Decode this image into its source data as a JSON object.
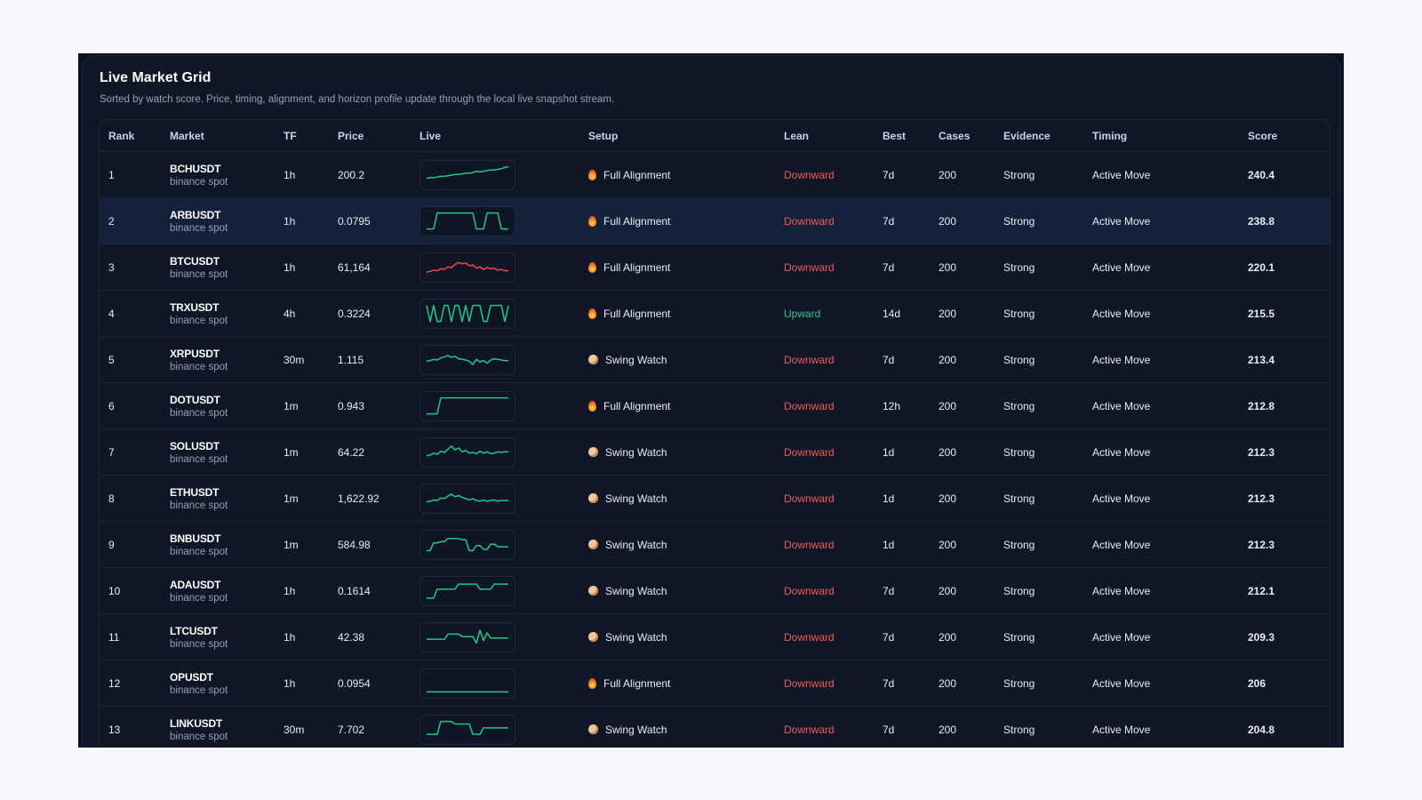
{
  "header": {
    "title": "Live Market Grid",
    "subtitle": "Sorted by watch score. Price, timing, alignment, and horizon profile update through the local live snapshot stream."
  },
  "columns": [
    "Rank",
    "Market",
    "TF",
    "Price",
    "Live",
    "Setup",
    "Lean",
    "Best",
    "Cases",
    "Evidence",
    "Timing",
    "Score"
  ],
  "colors": {
    "up": "#35c48c",
    "down": "#f05a5a",
    "spark_up": "#22c58a",
    "spark_down": "#f0454a"
  },
  "rows": [
    {
      "rank": "1",
      "symbol": "BCHUSDT",
      "venue": "binance spot",
      "tf": "1h",
      "price": "200.2",
      "setup_icon": "flame-icon",
      "setup": "Full Alignment",
      "lean": "Downward",
      "lean_dir": "down",
      "best": "7d",
      "cases": "200",
      "evidence": "Strong",
      "timing": "Active Move",
      "score": "240.4",
      "spark": [
        12,
        13,
        13,
        14,
        15,
        15,
        16,
        17,
        18,
        18,
        19,
        20,
        20,
        21,
        23,
        22,
        23,
        24,
        25,
        25,
        26,
        27,
        29,
        30
      ],
      "spark_color": "up"
    },
    {
      "rank": "2",
      "symbol": "ARBUSDT",
      "venue": "binance spot",
      "tf": "1h",
      "price": "0.0795",
      "setup_icon": "flame-icon",
      "setup": "Full Alignment",
      "lean": "Downward",
      "lean_dir": "down",
      "best": "7d",
      "cases": "200",
      "evidence": "Strong",
      "timing": "Active Move",
      "score": "238.8",
      "spark": [
        5,
        5,
        5,
        30,
        30,
        30,
        30,
        30,
        30,
        30,
        30,
        30,
        30,
        30,
        5,
        5,
        5,
        30,
        30,
        30,
        30,
        5,
        5,
        5
      ],
      "spark_color": "up"
    },
    {
      "rank": "3",
      "symbol": "BTCUSDT",
      "venue": "binance spot",
      "tf": "1h",
      "price": "61,164",
      "setup_icon": "flame-icon",
      "setup": "Full Alignment",
      "lean": "Downward",
      "lean_dir": "down",
      "best": "7d",
      "cases": "200",
      "evidence": "Strong",
      "timing": "Active Move",
      "score": "220.1",
      "spark": [
        10,
        11,
        13,
        12,
        15,
        14,
        18,
        17,
        22,
        25,
        23,
        24,
        20,
        21,
        16,
        18,
        14,
        17,
        15,
        16,
        13,
        14,
        12,
        12
      ],
      "spark_color": "down"
    },
    {
      "rank": "4",
      "symbol": "TRXUSDT",
      "venue": "binance spot",
      "tf": "4h",
      "price": "0.3224",
      "setup_icon": "flame-icon",
      "setup": "Full Alignment",
      "lean": "Upward",
      "lean_dir": "up",
      "best": "14d",
      "cases": "200",
      "evidence": "Strong",
      "timing": "Active Move",
      "score": "215.5",
      "spark": [
        30,
        5,
        30,
        5,
        5,
        30,
        30,
        5,
        30,
        30,
        5,
        30,
        5,
        30,
        30,
        30,
        5,
        5,
        30,
        30,
        30,
        30,
        5,
        30
      ],
      "spark_color": "up"
    },
    {
      "rank": "5",
      "symbol": "XRPUSDT",
      "venue": "binance spot",
      "tf": "30m",
      "price": "1.115",
      "setup_icon": "swing-icon",
      "setup": "Swing Watch",
      "lean": "Downward",
      "lean_dir": "down",
      "best": "7d",
      "cases": "200",
      "evidence": "Strong",
      "timing": "Active Move",
      "score": "213.4",
      "spark": [
        15,
        16,
        18,
        17,
        20,
        22,
        24,
        21,
        23,
        19,
        18,
        17,
        15,
        10,
        18,
        14,
        16,
        12,
        17,
        19,
        18,
        17,
        16,
        16
      ],
      "spark_color": "up"
    },
    {
      "rank": "6",
      "symbol": "DOTUSDT",
      "venue": "binance spot",
      "tf": "1m",
      "price": "0.943",
      "setup_icon": "flame-icon",
      "setup": "Full Alignment",
      "lean": "Downward",
      "lean_dir": "down",
      "best": "12h",
      "cases": "200",
      "evidence": "Strong",
      "timing": "Active Move",
      "score": "212.8",
      "spark": [
        5,
        5,
        5,
        5,
        30,
        30,
        30,
        30,
        30,
        30,
        30,
        30,
        30,
        30,
        30,
        30,
        30,
        30,
        30,
        30,
        30,
        30,
        30,
        30
      ],
      "spark_color": "up"
    },
    {
      "rank": "7",
      "symbol": "SOLUSDT",
      "venue": "binance spot",
      "tf": "1m",
      "price": "64.22",
      "setup_icon": "swing-icon",
      "setup": "Swing Watch",
      "lean": "Downward",
      "lean_dir": "down",
      "best": "1d",
      "cases": "200",
      "evidence": "Strong",
      "timing": "Active Move",
      "score": "212.3",
      "spark": [
        12,
        13,
        16,
        14,
        19,
        17,
        22,
        27,
        21,
        24,
        18,
        20,
        16,
        17,
        15,
        19,
        16,
        18,
        15,
        16,
        18,
        17,
        18,
        18
      ],
      "spark_color": "up"
    },
    {
      "rank": "8",
      "symbol": "ETHUSDT",
      "venue": "binance spot",
      "tf": "1m",
      "price": "1,622.92",
      "setup_icon": "swing-icon",
      "setup": "Swing Watch",
      "lean": "Downward",
      "lean_dir": "down",
      "best": "1d",
      "cases": "200",
      "evidence": "Strong",
      "timing": "Active Move",
      "score": "212.3",
      "spark": [
        12,
        13,
        15,
        14,
        18,
        17,
        21,
        24,
        20,
        22,
        19,
        17,
        15,
        17,
        14,
        13,
        15,
        13,
        14,
        15,
        13,
        14,
        14,
        14
      ],
      "spark_color": "up"
    },
    {
      "rank": "9",
      "symbol": "BNBUSDT",
      "venue": "binance spot",
      "tf": "1m",
      "price": "584.98",
      "setup_icon": "swing-icon",
      "setup": "Swing Watch",
      "lean": "Downward",
      "lean_dir": "down",
      "best": "1d",
      "cases": "200",
      "evidence": "Strong",
      "timing": "Active Move",
      "score": "212.3",
      "spark": [
        8,
        8,
        20,
        20,
        22,
        22,
        27,
        27,
        27,
        27,
        25,
        25,
        8,
        8,
        16,
        16,
        10,
        10,
        18,
        18,
        14,
        14,
        14,
        14
      ],
      "spark_color": "up"
    },
    {
      "rank": "10",
      "symbol": "ADAUSDT",
      "venue": "binance spot",
      "tf": "1h",
      "price": "0.1614",
      "setup_icon": "swing-icon",
      "setup": "Swing Watch",
      "lean": "Downward",
      "lean_dir": "down",
      "best": "7d",
      "cases": "200",
      "evidence": "Strong",
      "timing": "Active Move",
      "score": "212.1",
      "spark": [
        6,
        6,
        6,
        20,
        20,
        20,
        20,
        20,
        20,
        28,
        28,
        28,
        28,
        28,
        28,
        20,
        20,
        20,
        20,
        28,
        28,
        28,
        28,
        28
      ],
      "spark_color": "up"
    },
    {
      "rank": "11",
      "symbol": "LTCUSDT",
      "venue": "binance spot",
      "tf": "1h",
      "price": "42.38",
      "setup_icon": "swing-icon",
      "setup": "Swing Watch",
      "lean": "Downward",
      "lean_dir": "down",
      "best": "7d",
      "cases": "200",
      "evidence": "Strong",
      "timing": "Active Move",
      "score": "209.3",
      "spark": [
        14,
        14,
        14,
        14,
        14,
        14,
        22,
        22,
        22,
        22,
        18,
        18,
        18,
        18,
        8,
        28,
        12,
        24,
        16,
        16,
        16,
        16,
        16,
        16
      ],
      "spark_color": "up"
    },
    {
      "rank": "12",
      "symbol": "OPUSDT",
      "venue": "binance spot",
      "tf": "1h",
      "price": "0.0954",
      "setup_icon": "flame-icon",
      "setup": "Full Alignment",
      "lean": "Downward",
      "lean_dir": "down",
      "best": "7d",
      "cases": "200",
      "evidence": "Strong",
      "timing": "Active Move",
      "score": "206",
      "spark": [
        4,
        4,
        4,
        4,
        4,
        4,
        4,
        4,
        4,
        4,
        4,
        4,
        4,
        4,
        4,
        4,
        4,
        4,
        4,
        4,
        4,
        4,
        4,
        4
      ],
      "spark_color": "up"
    },
    {
      "rank": "13",
      "symbol": "LINKUSDT",
      "venue": "binance spot",
      "tf": "30m",
      "price": "7.702",
      "setup_icon": "swing-icon",
      "setup": "Swing Watch",
      "lean": "Downward",
      "lean_dir": "down",
      "best": "7d",
      "cases": "200",
      "evidence": "Strong",
      "timing": "Active Move",
      "score": "204.8",
      "spark": [
        10,
        10,
        10,
        10,
        30,
        30,
        30,
        30,
        26,
        26,
        26,
        26,
        26,
        10,
        10,
        10,
        20,
        20,
        20,
        20,
        20,
        20,
        20,
        20
      ],
      "spark_color": "up"
    }
  ]
}
